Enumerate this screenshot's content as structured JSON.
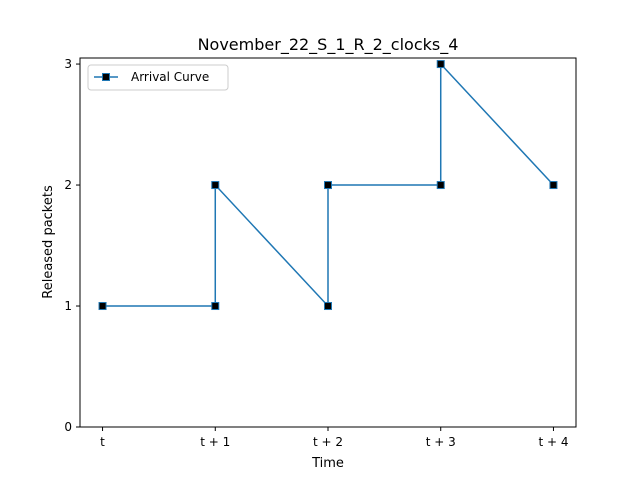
{
  "chart_data": {
    "type": "line",
    "title": "November_22_S_1_R_2_clocks_4",
    "xlabel": "Time",
    "ylabel": "Released packets",
    "x_tick_labels": [
      "t",
      "t + 1",
      "t + 2",
      "t + 3",
      "t + 4"
    ],
    "y_ticks": [
      0,
      1,
      2,
      3
    ],
    "xlim": [
      -0.2,
      4.2
    ],
    "ylim": [
      0,
      3.05
    ],
    "grid": false,
    "legend_position": "top-left",
    "series": [
      {
        "name": "Arrival Curve",
        "color": "#1f77b4",
        "marker": "square",
        "marker_color": "#000000",
        "x": [
          0,
          1,
          1,
          2,
          2,
          3,
          3,
          4
        ],
        "y": [
          1,
          1,
          2,
          1,
          2,
          2,
          3,
          2
        ]
      }
    ]
  }
}
